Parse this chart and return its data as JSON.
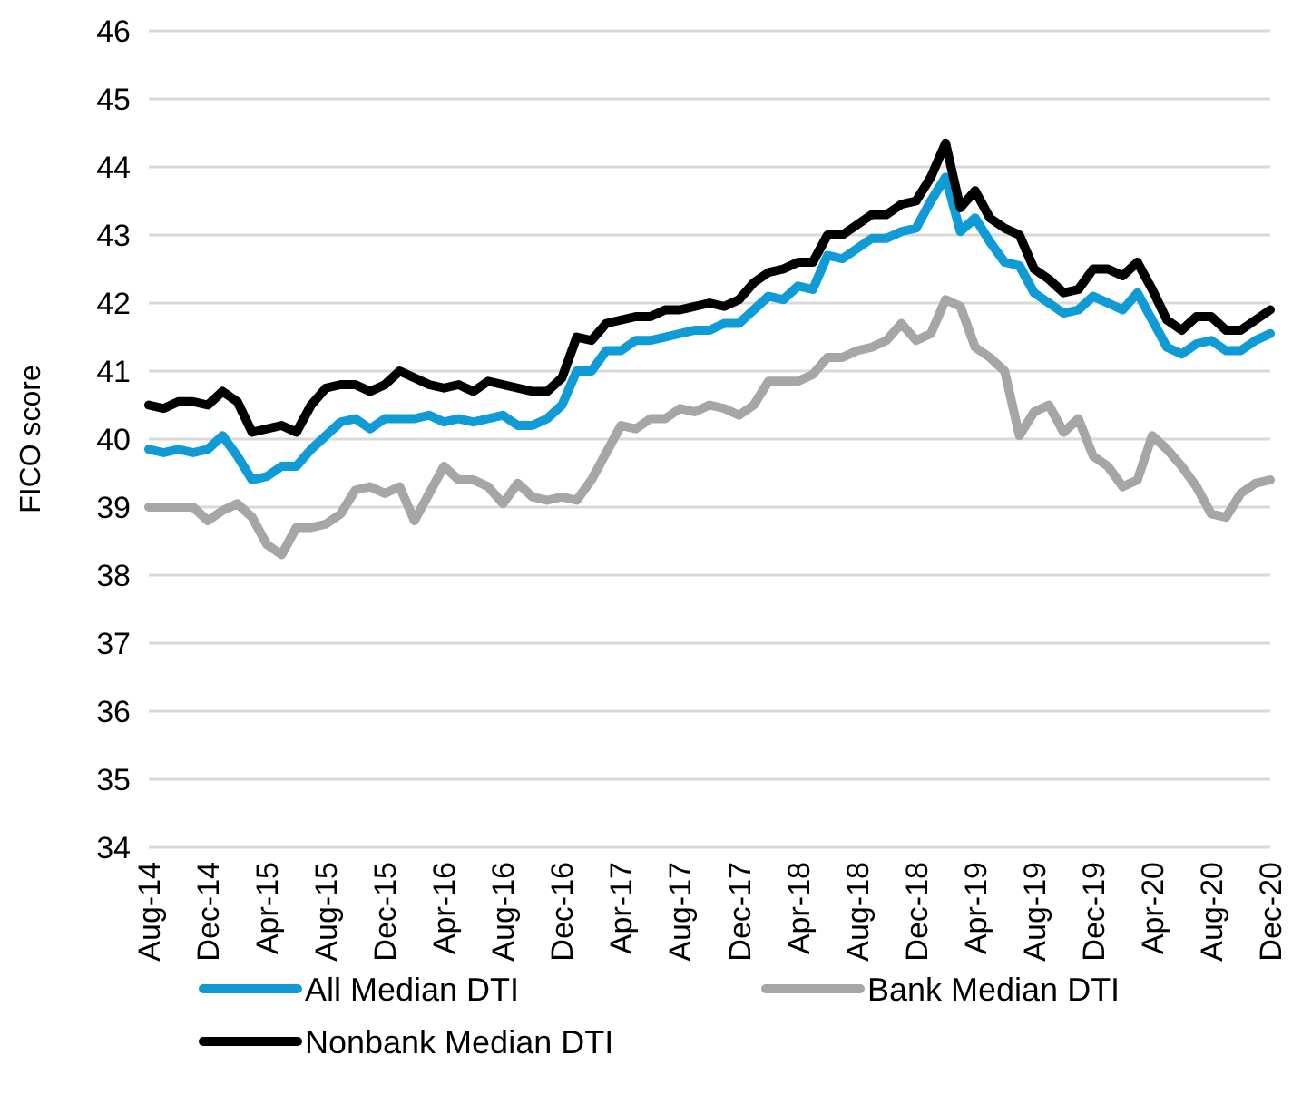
{
  "chart_data": {
    "type": "line",
    "ylabel": "FICO score",
    "ylim": [
      34,
      46
    ],
    "yticks": [
      34,
      35,
      36,
      37,
      38,
      39,
      40,
      41,
      42,
      43,
      44,
      45,
      46
    ],
    "grid": "y",
    "legend": "bottom",
    "line_style": "solid",
    "marker": "none",
    "categories": [
      "Aug-14",
      null,
      null,
      null,
      "Dec-14",
      null,
      null,
      null,
      "Apr-15",
      null,
      null,
      null,
      "Aug-15",
      null,
      null,
      null,
      "Dec-15",
      null,
      null,
      null,
      "Apr-16",
      null,
      null,
      null,
      "Aug-16",
      null,
      null,
      null,
      "Dec-16",
      null,
      null,
      null,
      "Apr-17",
      null,
      null,
      null,
      "Aug-17",
      null,
      null,
      null,
      "Dec-17",
      null,
      null,
      null,
      "Apr-18",
      null,
      null,
      null,
      "Aug-18",
      null,
      null,
      null,
      "Dec-18",
      null,
      null,
      null,
      "Apr-19",
      null,
      null,
      null,
      "Aug-19",
      null,
      null,
      null,
      "Dec-19",
      null,
      null,
      null,
      "Apr-20",
      null,
      null,
      null,
      "Aug-20",
      null,
      null,
      null,
      "Dec-20"
    ],
    "series": [
      {
        "name": "All Median DTI",
        "color": "#0e9bd6",
        "values": [
          39.85,
          39.8,
          39.85,
          39.8,
          39.85,
          40.05,
          39.75,
          39.4,
          39.45,
          39.6,
          39.6,
          39.85,
          40.05,
          40.25,
          40.3,
          40.15,
          40.3,
          40.3,
          40.3,
          40.35,
          40.25,
          40.3,
          40.25,
          40.3,
          40.35,
          40.2,
          40.2,
          40.3,
          40.5,
          41.0,
          41.0,
          41.3,
          41.3,
          41.45,
          41.45,
          41.5,
          41.55,
          41.6,
          41.6,
          41.7,
          41.7,
          41.9,
          42.1,
          42.05,
          42.25,
          42.2,
          42.7,
          42.65,
          42.8,
          42.95,
          42.95,
          43.05,
          43.1,
          43.5,
          43.85,
          43.05,
          43.25,
          42.9,
          42.6,
          42.55,
          42.15,
          42.0,
          41.85,
          41.9,
          42.1,
          42.0,
          41.9,
          42.15,
          41.75,
          41.35,
          41.25,
          41.4,
          41.45,
          41.3,
          41.3,
          41.45,
          41.55
        ]
      },
      {
        "name": "Bank Median DTI",
        "color": "#a6a6a6",
        "values": [
          39.0,
          39.0,
          39.0,
          39.0,
          38.8,
          38.95,
          39.05,
          38.85,
          38.45,
          38.3,
          38.7,
          38.7,
          38.75,
          38.9,
          39.25,
          39.3,
          39.2,
          39.3,
          38.8,
          39.2,
          39.6,
          39.4,
          39.4,
          39.3,
          39.05,
          39.35,
          39.15,
          39.1,
          39.15,
          39.1,
          39.4,
          39.8,
          40.2,
          40.15,
          40.3,
          40.3,
          40.45,
          40.4,
          40.5,
          40.45,
          40.35,
          40.5,
          40.85,
          40.85,
          40.85,
          40.95,
          41.2,
          41.2,
          41.3,
          41.35,
          41.45,
          41.7,
          41.45,
          41.55,
          42.05,
          41.95,
          41.35,
          41.2,
          41.0,
          40.05,
          40.4,
          40.5,
          40.1,
          40.3,
          39.75,
          39.6,
          39.3,
          39.4,
          40.05,
          39.85,
          39.6,
          39.3,
          38.9,
          38.85,
          39.2,
          39.35,
          39.4
        ]
      },
      {
        "name": "Nonbank Median DTI",
        "color": "#000000",
        "values": [
          40.5,
          40.45,
          40.55,
          40.55,
          40.5,
          40.7,
          40.55,
          40.1,
          40.15,
          40.2,
          40.1,
          40.5,
          40.75,
          40.8,
          40.8,
          40.7,
          40.8,
          41.0,
          40.9,
          40.8,
          40.75,
          40.8,
          40.7,
          40.85,
          40.8,
          40.75,
          40.7,
          40.7,
          40.9,
          41.5,
          41.45,
          41.7,
          41.75,
          41.8,
          41.8,
          41.9,
          41.9,
          41.95,
          42.0,
          41.95,
          42.05,
          42.3,
          42.45,
          42.5,
          42.6,
          42.6,
          43.0,
          43.0,
          43.15,
          43.3,
          43.3,
          43.45,
          43.5,
          43.85,
          44.35,
          43.4,
          43.65,
          43.25,
          43.1,
          43.0,
          42.5,
          42.35,
          42.15,
          42.2,
          42.5,
          42.5,
          42.4,
          42.6,
          42.2,
          41.75,
          41.6,
          41.8,
          41.8,
          41.6,
          41.6,
          41.75,
          41.9
        ]
      }
    ]
  }
}
